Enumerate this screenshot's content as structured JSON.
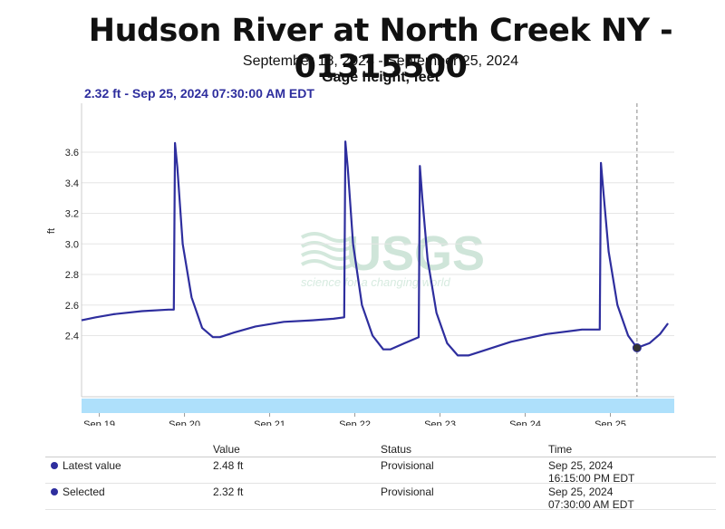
{
  "header": {
    "title": "Hudson River at North Creek NY - 01315500",
    "subtitle": "September 18, 2024 - September 25, 2024",
    "parameter": "Gage height, feet",
    "selected_label": "2.32 ft - Sep 25, 2024 07:30:00 AM EDT"
  },
  "watermark": {
    "text": "USGS",
    "tagline": "science for a changing world"
  },
  "colors": {
    "series": "#2e2e9e",
    "navigator": "#aee0fb",
    "grid": "#e6e6e6",
    "cursor": "#888888"
  },
  "chart_data": {
    "type": "line",
    "title": "Hudson River at North Creek NY - 01315500",
    "subtitle": "September 18, 2024 - September 25, 2024",
    "ylabel": "ft",
    "xlabel": "",
    "ylim": [
      2.0,
      3.92
    ],
    "xlim": [
      "2024-09-18T19:00",
      "2024-09-25T18:00"
    ],
    "yticks": [
      2.4,
      2.6,
      2.8,
      3.0,
      3.2,
      3.4,
      3.6
    ],
    "ytick_labels": [
      "2.4",
      "2.6",
      "2.8",
      "3.0",
      "3.2",
      "3.4",
      "3.6"
    ],
    "xticks": [
      "2024-09-19",
      "2024-09-20",
      "2024-09-21",
      "2024-09-22",
      "2024-09-23",
      "2024-09-24",
      "2024-09-25"
    ],
    "xtick_labels": [
      "Sep 19",
      "Sep 20",
      "Sep 21",
      "Sep 22",
      "Sep 23",
      "Sep 24",
      "Sep 25"
    ],
    "grid": "horizontal",
    "series": [
      {
        "x": [
          "2024-09-18T19:00",
          "2024-09-18T23:00",
          "2024-09-19T04:00",
          "2024-09-19T12:00",
          "2024-09-19T19:30",
          "2024-09-19T21:00",
          "2024-09-19T21:20",
          "2024-09-19T22:00",
          "2024-09-19T23:30",
          "2024-09-20T02:00",
          "2024-09-20T05:00",
          "2024-09-20T08:00",
          "2024-09-20T10:00",
          "2024-09-20T14:00",
          "2024-09-20T20:00",
          "2024-09-21T04:00",
          "2024-09-21T12:00",
          "2024-09-21T18:00",
          "2024-09-21T21:00",
          "2024-09-21T21:20",
          "2024-09-21T22:00",
          "2024-09-21T23:30",
          "2024-09-22T02:00",
          "2024-09-22T05:00",
          "2024-09-22T08:00",
          "2024-09-22T10:00",
          "2024-09-22T14:00",
          "2024-09-22T18:00",
          "2024-09-22T18:20",
          "2024-09-22T19:00",
          "2024-09-22T20:30",
          "2024-09-22T23:00",
          "2024-09-23T02:00",
          "2024-09-23T05:00",
          "2024-09-23T08:00",
          "2024-09-23T12:00",
          "2024-09-23T20:00",
          "2024-09-24T06:00",
          "2024-09-24T16:00",
          "2024-09-24T21:00",
          "2024-09-24T21:20",
          "2024-09-24T22:00",
          "2024-09-24T23:30",
          "2024-09-25T02:00",
          "2024-09-25T05:00",
          "2024-09-25T07:30",
          "2024-09-25T11:00",
          "2024-09-25T14:00",
          "2024-09-25T16:15"
        ],
        "y": [
          2.5,
          2.52,
          2.54,
          2.56,
          2.57,
          2.57,
          3.66,
          3.5,
          3.0,
          2.65,
          2.45,
          2.39,
          2.39,
          2.42,
          2.46,
          2.49,
          2.5,
          2.51,
          2.52,
          3.67,
          3.5,
          3.0,
          2.6,
          2.4,
          2.31,
          2.31,
          2.35,
          2.39,
          3.51,
          3.3,
          2.9,
          2.55,
          2.35,
          2.27,
          2.27,
          2.3,
          2.36,
          2.41,
          2.44,
          2.44,
          3.53,
          3.35,
          2.95,
          2.6,
          2.4,
          2.32,
          2.35,
          2.41,
          2.48
        ]
      }
    ],
    "selected_point": {
      "x": "2024-09-25T07:30",
      "y": 2.32
    }
  },
  "table": {
    "headers": {
      "label": "",
      "value": "Value",
      "status": "Status",
      "time": "Time"
    },
    "rows": [
      {
        "label": "Latest value",
        "value": "2.48 ft",
        "status": "Provisional",
        "date": "Sep 25, 2024",
        "time": "16:15:00 PM EDT"
      },
      {
        "label": "Selected",
        "value": "2.32 ft",
        "status": "Provisional",
        "date": "Sep 25, 2024",
        "time": "07:30:00 AM EDT"
      }
    ]
  }
}
